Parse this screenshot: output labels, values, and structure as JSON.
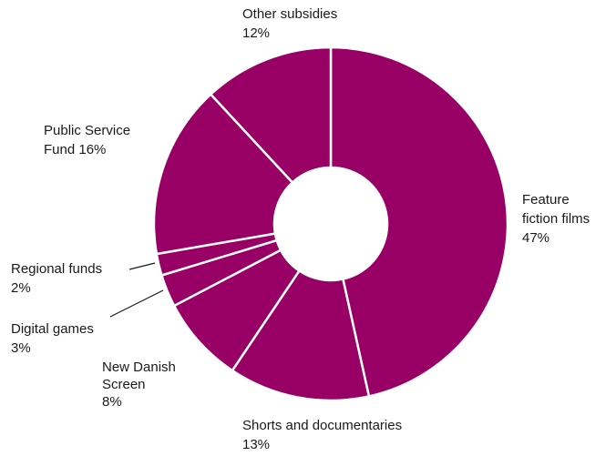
{
  "chart_data": {
    "type": "pie",
    "donut": true,
    "color": "#990066",
    "unit": "%",
    "slices": [
      {
        "label": "Feature fiction films",
        "value": 47
      },
      {
        "label": "Shorts and documentaries",
        "value": 13
      },
      {
        "label": "New Danish Screen",
        "value": 8
      },
      {
        "label": "Digital games",
        "value": 3
      },
      {
        "label": "Regional funds",
        "value": 2
      },
      {
        "label": "Public Service Fund",
        "value": 16
      },
      {
        "label": "Other subsidies",
        "value": 12
      }
    ],
    "labels": [
      {
        "lines": [
          "Feature",
          "fiction films",
          "47%"
        ]
      },
      {
        "lines": [
          "Shorts and documentaries",
          "13%"
        ]
      },
      {
        "lines": [
          "New Danish",
          "Screen",
          "8%"
        ]
      },
      {
        "lines": [
          "Digital games",
          "3%"
        ]
      },
      {
        "lines": [
          "Regional funds",
          "2%"
        ]
      },
      {
        "lines": [
          "Public Service",
          "Fund 16%"
        ]
      },
      {
        "lines": [
          "Other subsidies",
          "12%"
        ]
      }
    ]
  }
}
